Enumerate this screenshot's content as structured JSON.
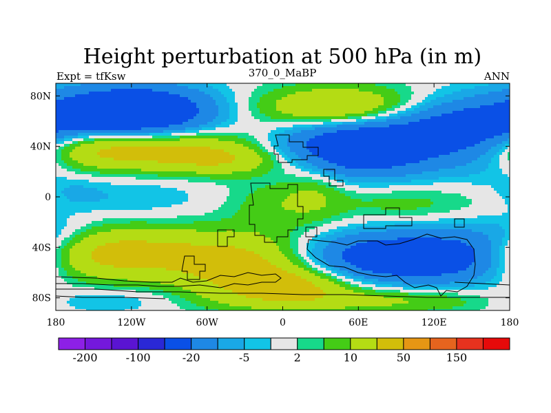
{
  "chart_data": {
    "type": "heatmap",
    "title": "Height perturbation at 500 hPa (in m)",
    "left_label": "Expt = tfKsw",
    "center_label": "370_0_MaBP",
    "right_label": "ANN",
    "xlim": [
      -180,
      180
    ],
    "ylim": [
      -90,
      90
    ],
    "x_ticks": [
      {
        "value": -180,
        "label": "180"
      },
      {
        "value": -120,
        "label": "120W"
      },
      {
        "value": -60,
        "label": "60W"
      },
      {
        "value": 0,
        "label": "0"
      },
      {
        "value": 60,
        "label": "60E"
      },
      {
        "value": 120,
        "label": "120E"
      },
      {
        "value": 180,
        "label": "180"
      }
    ],
    "y_ticks": [
      {
        "value": 80,
        "label": "80N"
      },
      {
        "value": 40,
        "label": "40N"
      },
      {
        "value": 0,
        "label": "0"
      },
      {
        "value": -40,
        "label": "40S"
      },
      {
        "value": -80,
        "label": "80S"
      }
    ],
    "colorbar": {
      "colors": [
        "#8d20e6",
        "#7418dc",
        "#5a14d2",
        "#2a28d6",
        "#0a50e6",
        "#1e88e5",
        "#19a8e6",
        "#12c4e6",
        "#e6e6e6",
        "#17d98a",
        "#44cc16",
        "#b4dc14",
        "#d2be0a",
        "#e69614",
        "#e6641e",
        "#e6321e",
        "#e60a0a"
      ],
      "tick_labels": [
        {
          "after_box": 1,
          "label": "-200"
        },
        {
          "after_box": 3,
          "label": "-100"
        },
        {
          "after_box": 5,
          "label": "-20"
        },
        {
          "after_box": 7,
          "label": "-5"
        },
        {
          "after_box": 9,
          "label": "2"
        },
        {
          "after_box": 11,
          "label": "10"
        },
        {
          "after_box": 13,
          "label": "50"
        },
        {
          "after_box": 15,
          "label": "150"
        }
      ]
    },
    "blobs": [
      {
        "lon": -150,
        "lat": 62,
        "slon": 50,
        "slat": 16,
        "value": -22
      },
      {
        "lon": -110,
        "lat": 68,
        "slon": 40,
        "slat": 14,
        "value": -30
      },
      {
        "lon": -160,
        "lat": 40,
        "slon": 35,
        "slat": 12,
        "value": 14
      },
      {
        "lon": -100,
        "lat": 38,
        "slon": 60,
        "slat": 12,
        "value": 25
      },
      {
        "lon": -40,
        "lat": 28,
        "slon": 35,
        "slat": 8,
        "value": 12
      },
      {
        "lon": 45,
        "lat": 70,
        "slon": 45,
        "slat": 12,
        "value": 25
      },
      {
        "lon": 60,
        "lat": 40,
        "slon": 45,
        "slat": 16,
        "value": -40
      },
      {
        "lon": 125,
        "lat": 58,
        "slon": 35,
        "slat": 14,
        "value": -14
      },
      {
        "lon": 160,
        "lat": 42,
        "slon": 30,
        "slat": 16,
        "value": -16
      },
      {
        "lon": -120,
        "lat": 0,
        "slon": 40,
        "slat": 12,
        "value": -5
      },
      {
        "lon": -165,
        "lat": 3,
        "slon": 16,
        "slat": 9,
        "value": -4
      },
      {
        "lon": -10,
        "lat": -5,
        "slon": 24,
        "slat": 15,
        "value": 7
      },
      {
        "lon": 25,
        "lat": 5,
        "slon": 18,
        "slat": 18,
        "value": 9
      },
      {
        "lon": 95,
        "lat": -5,
        "slon": 45,
        "slat": 10,
        "value": 7
      },
      {
        "lon": -140,
        "lat": -45,
        "slon": 60,
        "slat": 15,
        "value": 26
      },
      {
        "lon": -30,
        "lat": -55,
        "slon": 40,
        "slat": 18,
        "value": 22
      },
      {
        "lon": 10,
        "lat": -70,
        "slon": 35,
        "slat": 10,
        "value": 18
      },
      {
        "lon": 90,
        "lat": -48,
        "slon": 50,
        "slat": 14,
        "value": -35
      },
      {
        "lon": 150,
        "lat": -45,
        "slon": 30,
        "slat": 16,
        "value": -18
      },
      {
        "lon": -175,
        "lat": -28,
        "slon": 22,
        "slat": 10,
        "value": -6
      },
      {
        "lon": -150,
        "lat": -82,
        "slon": 40,
        "slat": 7,
        "value": -8
      },
      {
        "lon": 80,
        "lat": -82,
        "slon": 80,
        "slat": 7,
        "value": 12
      }
    ]
  }
}
